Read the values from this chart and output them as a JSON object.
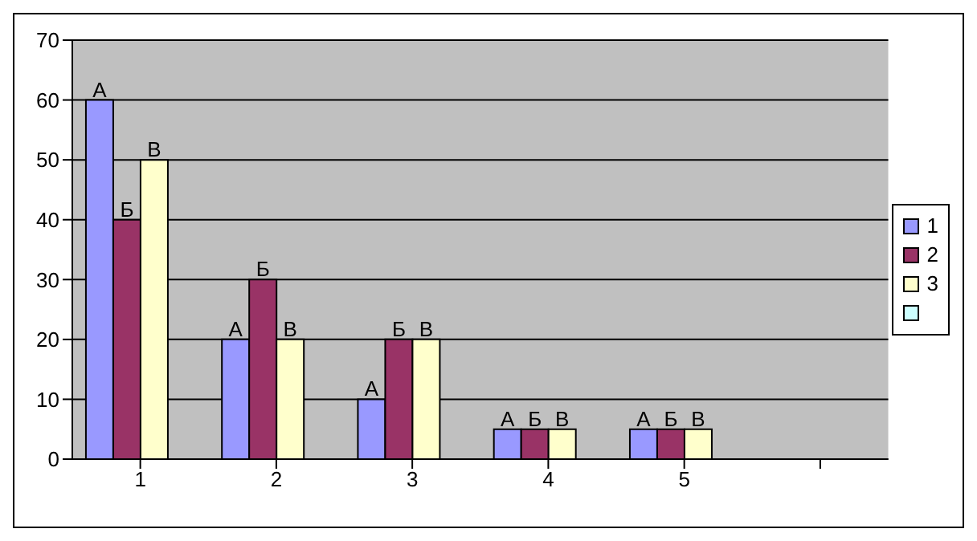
{
  "chart_data": {
    "type": "bar",
    "categories": [
      "1",
      "2",
      "3",
      "4",
      "5",
      null
    ],
    "series": [
      {
        "name": "1",
        "color": "#9999ff",
        "values": [
          60,
          20,
          10,
          5,
          5,
          null
        ],
        "value_labels": [
          "А",
          "А",
          "А",
          "А",
          "А",
          null
        ]
      },
      {
        "name": "2",
        "color": "#993366",
        "values": [
          40,
          30,
          20,
          5,
          5,
          null
        ],
        "value_labels": [
          "Б",
          "Б",
          "Б",
          "Б",
          "Б",
          null
        ]
      },
      {
        "name": "3",
        "color": "#ffffcc",
        "values": [
          50,
          20,
          20,
          5,
          5,
          null
        ],
        "value_labels": [
          "В",
          "В",
          "В",
          "В",
          "В",
          null
        ]
      },
      {
        "color": "#ccffff",
        "values": [
          null,
          null,
          null,
          null,
          null,
          null
        ]
      }
    ],
    "ylim": [
      0,
      70
    ],
    "yticks": [
      0,
      10,
      20,
      30,
      40,
      50,
      60,
      70
    ],
    "grid": "y",
    "legend": "right"
  }
}
